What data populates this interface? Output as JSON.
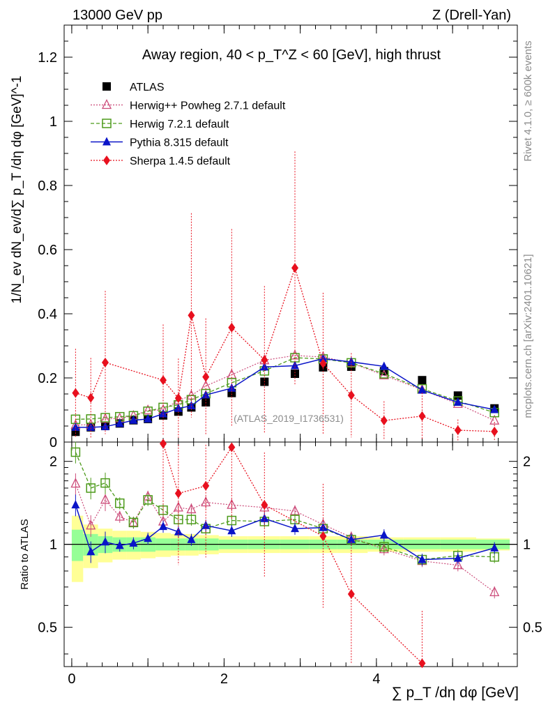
{
  "chart_data": {
    "type": "scatter",
    "header_left": "13000 GeV pp",
    "header_right": "Z (Drell-Yan)",
    "title": "Away region, 40 < p_T^Z < 60 [GeV], high thrust",
    "ylabel": "1/N_ev dN_ev/d∑ p_T /dη dφ [GeV]^-1",
    "xlabel": "∑ p_T /dη dφ [GeV]",
    "ratio_ylabel": "Ratio to ATLAS",
    "watermark": "(ATLAS_2019_I1736531)",
    "side_label_top": "Rivet 4.1.0, ≥ 600k events",
    "side_label_bottom": "mcplots.cern.ch [arXiv:2401.10621]",
    "xlim": [
      -0.1,
      5.85
    ],
    "ylim": [
      0,
      1.3
    ],
    "ratio_ylim": [
      0.36,
      2.35
    ],
    "x_ticks": [
      "0",
      "2",
      "4"
    ],
    "y_ticks": [
      "0",
      "0.2",
      "0.4",
      "0.6",
      "0.8",
      "1",
      "1.2"
    ],
    "ratio_ticks": [
      "0.5",
      "1",
      "2"
    ],
    "x_bins": [
      0.05,
      0.25,
      0.44,
      0.63,
      0.81,
      1.0,
      1.2,
      1.4,
      1.57,
      1.76,
      2.1,
      2.53,
      2.93,
      3.3,
      3.67,
      4.1,
      4.6,
      5.07,
      5.55
    ],
    "series": [
      {
        "name": "ATLAS",
        "color": "#000000",
        "marker": "square",
        "values": [
          0.032,
          0.046,
          0.05,
          0.058,
          0.068,
          0.072,
          0.083,
          0.095,
          0.108,
          0.124,
          0.153,
          0.188,
          0.213,
          0.233,
          0.235,
          0.221,
          0.193,
          0.145,
          0.105
        ],
        "ratio": [
          1,
          1,
          1,
          1,
          1,
          1,
          1,
          1,
          1,
          1,
          1,
          1,
          1,
          1,
          1,
          1,
          1,
          1,
          1
        ]
      },
      {
        "name": "Herwig++ Powheg 2.7.1 default",
        "color": "#cc4c7a",
        "marker": "triangle-open",
        "values": [
          0.053,
          0.054,
          0.072,
          0.074,
          0.082,
          0.099,
          0.1,
          0.13,
          0.145,
          0.175,
          0.21,
          0.255,
          0.27,
          0.265,
          0.247,
          0.208,
          0.163,
          0.119,
          0.067
        ],
        "ratio": [
          1.66,
          1.17,
          1.45,
          1.26,
          1.2,
          1.49,
          1.21,
          1.36,
          1.34,
          1.42,
          1.39,
          1.36,
          1.32,
          1.18,
          1.06,
          0.96,
          0.87,
          0.84,
          0.67
        ]
      },
      {
        "name": "Herwig 7.2.1 default",
        "color": "#4c9a1a",
        "marker": "square-open",
        "values": [
          0.071,
          0.072,
          0.076,
          0.079,
          0.082,
          0.096,
          0.108,
          0.116,
          0.132,
          0.151,
          0.185,
          0.222,
          0.263,
          0.259,
          0.247,
          0.213,
          0.166,
          0.128,
          0.092
        ],
        "ratio": [
          2.16,
          1.6,
          1.67,
          1.41,
          1.2,
          1.45,
          1.33,
          1.23,
          1.23,
          1.14,
          1.22,
          1.21,
          1.23,
          1.14,
          1.04,
          0.98,
          0.88,
          0.91,
          0.9
        ]
      },
      {
        "name": "Pythia 8.315 default",
        "color": "#0a14c8",
        "marker": "triangle",
        "values": [
          0.046,
          0.046,
          0.048,
          0.058,
          0.068,
          0.072,
          0.088,
          0.105,
          0.113,
          0.147,
          0.168,
          0.234,
          0.238,
          0.26,
          0.25,
          0.236,
          0.162,
          0.124,
          0.101
        ],
        "ratio": [
          1.39,
          0.94,
          1.02,
          0.99,
          1.01,
          1.05,
          1.16,
          1.11,
          1.04,
          1.17,
          1.12,
          1.24,
          1.14,
          1.15,
          1.04,
          1.08,
          0.88,
          0.89,
          0.97
        ]
      },
      {
        "name": "Sherpa 1.4.5 default",
        "color": "#e8101e",
        "marker": "diamond",
        "values": [
          0.153,
          0.138,
          0.248,
          null,
          null,
          null,
          0.193,
          0.137,
          0.395,
          0.203,
          0.357,
          0.256,
          0.543,
          0.245,
          0.146,
          0.067,
          0.081,
          0.037,
          0.033
        ],
        "ratio": [
          null,
          null,
          null,
          null,
          null,
          null,
          2.32,
          1.53,
          null,
          1.63,
          2.25,
          1.39,
          null,
          1.07,
          0.66,
          null,
          0.37,
          null,
          null
        ]
      }
    ]
  }
}
